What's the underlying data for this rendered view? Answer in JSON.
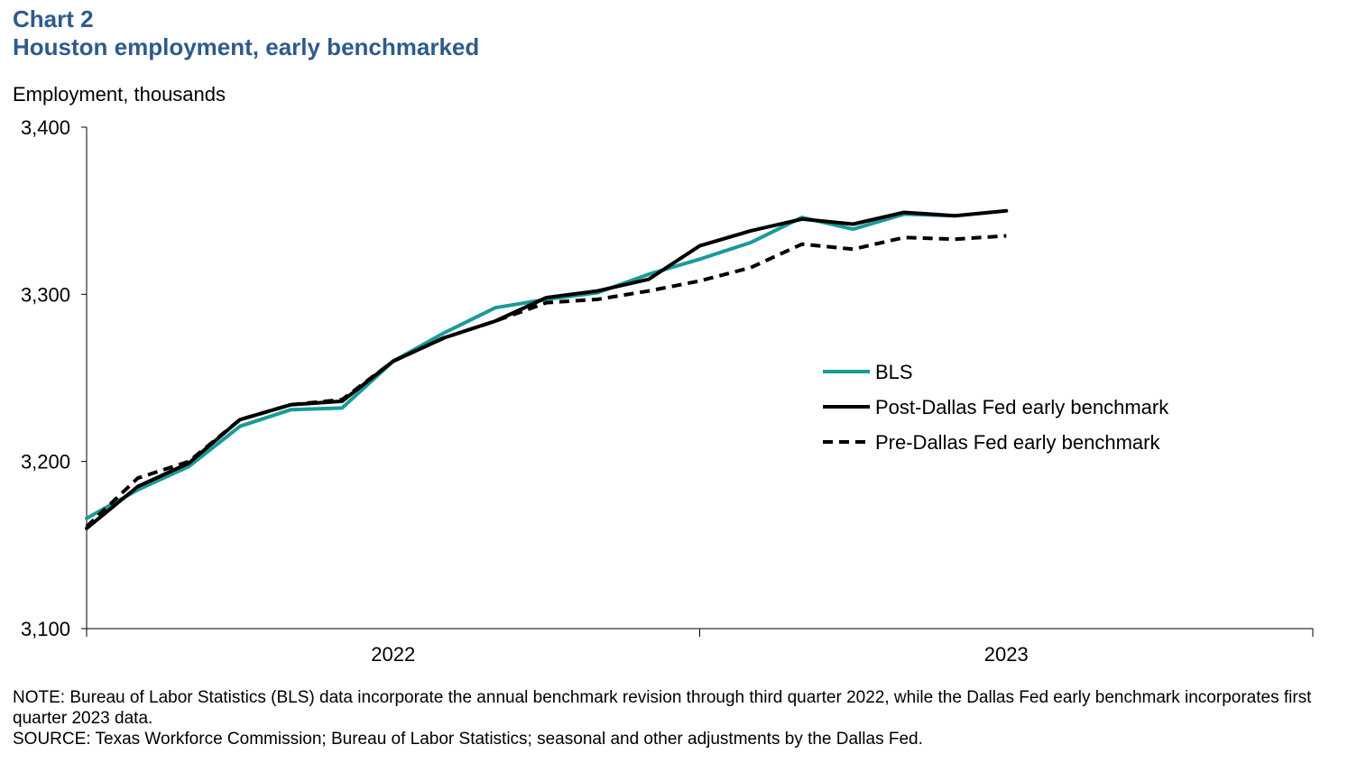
{
  "header": {
    "chart_number": "Chart 2",
    "title": "Houston employment, early benchmarked"
  },
  "colors": {
    "title": "#2e5b8c",
    "bls": "#1a9a9a",
    "post": "#000000",
    "pre": "#000000"
  },
  "chart_data": {
    "type": "line",
    "title": "Houston employment, early benchmarked",
    "ylabel": "Employment, thousands",
    "xlabel": "",
    "ylim": [
      3100,
      3400
    ],
    "yticks": [
      3100,
      3200,
      3300,
      3400
    ],
    "ytick_labels": [
      "3,100",
      "3,200",
      "3,300",
      "3,400"
    ],
    "x_categories": [
      "2022",
      "2023"
    ],
    "x_index_range": [
      0,
      24
    ],
    "x_category_boundaries": [
      0,
      12,
      24
    ],
    "legend_position": "middle-right",
    "grid": false,
    "series": [
      {
        "name": "BLS",
        "style": "solid-teal",
        "x": [
          0,
          1,
          2,
          3,
          4,
          5,
          6,
          7,
          8,
          9,
          10,
          11,
          12,
          13,
          14,
          15,
          16,
          17
        ],
        "values": [
          3166,
          3183,
          3197,
          3221,
          3231,
          3232,
          3260,
          3277,
          3292,
          3297,
          3301,
          3312,
          3321,
          3331,
          3346,
          3339,
          3348,
          3347
        ]
      },
      {
        "name": "Post-Dallas Fed early benchmark",
        "style": "solid-black",
        "x": [
          0,
          1,
          2,
          3,
          4,
          5,
          6,
          7,
          8,
          9,
          10,
          11,
          12,
          13,
          14,
          15,
          16,
          17,
          18
        ],
        "values": [
          3160,
          3185,
          3199,
          3225,
          3234,
          3236,
          3260,
          3274,
          3284,
          3298,
          3302,
          3309,
          3329,
          3338,
          3345,
          3342,
          3349,
          3347,
          3350
        ]
      },
      {
        "name": "Pre-Dallas Fed early benchmark",
        "style": "dashed-black",
        "x": [
          0,
          1,
          2,
          3,
          4,
          5,
          6,
          7,
          8,
          9,
          10,
          11,
          12,
          13,
          14,
          15,
          16,
          17,
          18
        ],
        "values": [
          3161,
          3190,
          3200,
          3225,
          3234,
          3237,
          3260,
          3274,
          3284,
          3295,
          3297,
          3302,
          3308,
          3316,
          3330,
          3327,
          3334,
          3333,
          3335
        ]
      }
    ]
  },
  "footer": {
    "note": "NOTE: Bureau of Labor Statistics (BLS) data incorporate the annual benchmark revision through third quarter 2022, while the Dallas Fed early benchmark incorporates first quarter 2023 data.",
    "source": "SOURCE: Texas Workforce Commission; Bureau of Labor Statistics; seasonal and other adjustments by the Dallas Fed."
  }
}
